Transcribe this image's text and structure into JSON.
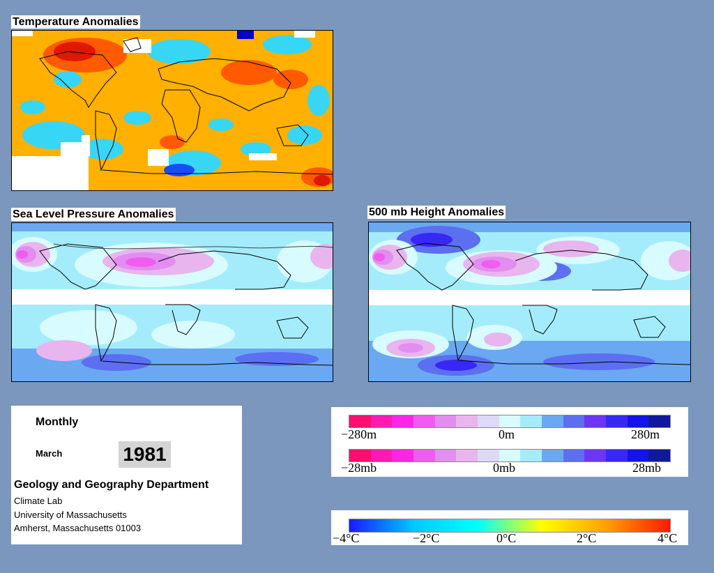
{
  "panels": {
    "temperature": {
      "title": "Temperature Anomalies"
    },
    "slp": {
      "title": "Sea Level Pressure Anomalies"
    },
    "height500": {
      "title": "500 mb Height Anomalies"
    }
  },
  "info": {
    "period": "Monthly",
    "month": "March",
    "year": "1981",
    "department": "Geology and Geography Department",
    "lab": "Climate Lab",
    "university": "University of Massachusetts",
    "address": "Amherst, Massachusetts 01003"
  },
  "legend_height": {
    "labels": [
      "−280m",
      "0m",
      "280m"
    ],
    "colors": [
      "#ff0e6f",
      "#ff1ab4",
      "#ff25e6",
      "#f15cf0",
      "#e28df0",
      "#e8b5ee",
      "#ddd9f6",
      "#d8fbff",
      "#a4ecfb",
      "#6aa8f2",
      "#5b6ff0",
      "#6d35f4",
      "#3828f3",
      "#1414e9",
      "#10189e"
    ]
  },
  "legend_pressure": {
    "labels": [
      "−28mb",
      "0mb",
      "28mb"
    ],
    "colors": [
      "#ff0e6f",
      "#ff1ab4",
      "#ff25e6",
      "#f15cf0",
      "#e28df0",
      "#e8b5ee",
      "#ddd9f6",
      "#d8fbff",
      "#a4ecfb",
      "#6aa8f2",
      "#5b6ff0",
      "#6d35f4",
      "#3828f3",
      "#1414e9",
      "#10189e"
    ]
  },
  "legend_temperature": {
    "labels": [
      "−4°C",
      "−2°C",
      "0°C",
      "2°C",
      "4°C"
    ],
    "gradient": [
      "#1a1aff",
      "#00c8ff",
      "#00ffff",
      "#ffff00",
      "#ffa000",
      "#ff1a00"
    ]
  }
}
